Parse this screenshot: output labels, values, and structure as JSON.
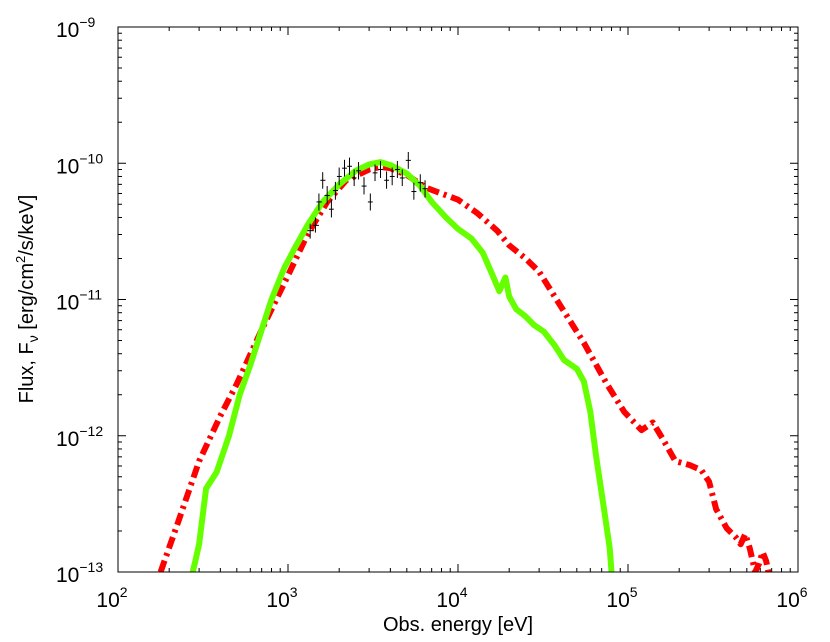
{
  "chart_data": {
    "type": "line",
    "xscale": "log",
    "yscale": "log",
    "xlabel": "Obs. energy [eV]",
    "ylabel": {
      "main": "Flux, F",
      "sub": "ν",
      "unit_a": " [erg/cm",
      "sup": "2",
      "unit_b": "/s/keV]"
    },
    "xlim": [
      100,
      1000000
    ],
    "ylim": [
      1e-13,
      1e-09
    ],
    "x_ticks": [
      {
        "value": 100,
        "base": "10",
        "exp": "2"
      },
      {
        "value": 1000,
        "base": "10",
        "exp": "3"
      },
      {
        "value": 10000,
        "base": "10",
        "exp": "4"
      },
      {
        "value": 100000,
        "base": "10",
        "exp": "5"
      },
      {
        "value": 1000000,
        "base": "10",
        "exp": "6"
      }
    ],
    "y_ticks": [
      {
        "value": 1e-13,
        "base": "10",
        "exp": "−13"
      },
      {
        "value": 1e-12,
        "base": "10",
        "exp": "−12"
      },
      {
        "value": 1e-11,
        "base": "10",
        "exp": "−11"
      },
      {
        "value": 1e-10,
        "base": "10",
        "exp": "−10"
      },
      {
        "value": 1e-09,
        "base": "10",
        "exp": "−9"
      }
    ],
    "series": [
      {
        "name": "model-red-dashdot",
        "color": "#ff0000",
        "style": "dash-dot",
        "points": [
          [
            178,
            1e-13
          ],
          [
            225,
            2.3e-13
          ],
          [
            300,
            6.5e-13
          ],
          [
            400,
            1.4e-12
          ],
          [
            500,
            2.4e-12
          ],
          [
            700,
            6e-12
          ],
          [
            1000,
            1.5e-11
          ],
          [
            1300,
            3e-11
          ],
          [
            1700,
            5.2e-11
          ],
          [
            2200,
            7.5e-11
          ],
          [
            3000,
            9e-11
          ],
          [
            3500,
            9.4e-11
          ],
          [
            4000,
            9.2e-11
          ],
          [
            5000,
            8.2e-11
          ],
          [
            6500,
            6.6e-11
          ],
          [
            8000,
            6e-11
          ],
          [
            10000,
            5.4e-11
          ],
          [
            13000,
            4.3e-11
          ],
          [
            17000,
            3.2e-11
          ],
          [
            20000,
            2.5e-11
          ],
          [
            25000,
            2e-11
          ],
          [
            30000,
            1.6e-11
          ],
          [
            40000,
            9e-12
          ],
          [
            55000,
            4.8e-12
          ],
          [
            75000,
            2.4e-12
          ],
          [
            95000,
            1.5e-12
          ],
          [
            120000,
            1.1e-12
          ],
          [
            140000,
            1.25e-12
          ],
          [
            160000,
            9.5e-13
          ],
          [
            190000,
            6.5e-13
          ],
          [
            230000,
            6.1e-13
          ],
          [
            270000,
            5.6e-13
          ],
          [
            300000,
            4.6e-13
          ],
          [
            330000,
            2.9e-13
          ],
          [
            380000,
            2.1e-13
          ],
          [
            430000,
            1.8e-13
          ],
          [
            460000,
            1.6e-13
          ],
          [
            490000,
            1.9e-13
          ],
          [
            520000,
            1.5e-13
          ],
          [
            560000,
            1e-13
          ],
          [
            590000,
            1.15e-13
          ],
          [
            620000,
            1.4e-13
          ],
          [
            650000,
            1.2e-13
          ],
          [
            670000,
            1e-13
          ]
        ]
      },
      {
        "name": "model-green-solid",
        "color": "#66ff00",
        "style": "solid",
        "points": [
          [
            275,
            1e-13
          ],
          [
            285,
            1.2e-13
          ],
          [
            300,
            1.6e-13
          ],
          [
            330,
            4.1e-13
          ],
          [
            380,
            5.4e-13
          ],
          [
            450,
            1e-12
          ],
          [
            520,
            2e-12
          ],
          [
            600,
            3.3e-12
          ],
          [
            700,
            6e-12
          ],
          [
            800,
            1e-11
          ],
          [
            950,
            1.7e-11
          ],
          [
            1100,
            2.4e-11
          ],
          [
            1300,
            3.5e-11
          ],
          [
            1600,
            5.2e-11
          ],
          [
            2000,
            7e-11
          ],
          [
            2500,
            8.8e-11
          ],
          [
            3000,
            9.8e-11
          ],
          [
            3500,
            1.02e-10
          ],
          [
            4000,
            9.7e-11
          ],
          [
            5000,
            8.4e-11
          ],
          [
            6000,
            6.8e-11
          ],
          [
            7000,
            5.2e-11
          ],
          [
            8500,
            4e-11
          ],
          [
            10000,
            3.3e-11
          ],
          [
            12000,
            2.8e-11
          ],
          [
            14000,
            2.2e-11
          ],
          [
            16000,
            1.5e-11
          ],
          [
            17500,
            1.15e-11
          ],
          [
            19000,
            1.45e-11
          ],
          [
            20000,
            1.05e-11
          ],
          [
            22000,
            8.5e-12
          ],
          [
            25000,
            7.5e-12
          ],
          [
            28000,
            6.5e-12
          ],
          [
            32000,
            5.8e-12
          ],
          [
            37000,
            4.6e-12
          ],
          [
            42000,
            3.6e-12
          ],
          [
            50000,
            3.1e-12
          ],
          [
            55000,
            2.5e-12
          ],
          [
            60000,
            1.5e-12
          ],
          [
            65000,
            7e-13
          ],
          [
            72000,
            3e-13
          ],
          [
            78000,
            1.5e-13
          ],
          [
            80000,
            1e-13
          ]
        ]
      }
    ],
    "data_points": [
      {
        "x": 1350,
        "y": 3.2e-11,
        "xlo": 1300,
        "xhi": 1420,
        "ylo": 2.8e-11,
        "yhi": 3.6e-11
      },
      {
        "x": 1450,
        "y": 3.5e-11,
        "xlo": 1400,
        "xhi": 1520,
        "ylo": 3.1e-11,
        "yhi": 4e-11
      },
      {
        "x": 1520,
        "y": 5.2e-11,
        "xlo": 1470,
        "xhi": 1580,
        "ylo": 4.5e-11,
        "yhi": 6e-11
      },
      {
        "x": 1600,
        "y": 7.5e-11,
        "xlo": 1550,
        "xhi": 1660,
        "ylo": 6.5e-11,
        "yhi": 8.6e-11
      },
      {
        "x": 1700,
        "y": 5.8e-11,
        "xlo": 1640,
        "xhi": 1760,
        "ylo": 5e-11,
        "yhi": 6.8e-11
      },
      {
        "x": 1800,
        "y": 4.6e-11,
        "xlo": 1740,
        "xhi": 1860,
        "ylo": 4e-11,
        "yhi": 5.4e-11
      },
      {
        "x": 1900,
        "y": 6.3e-11,
        "xlo": 1840,
        "xhi": 1970,
        "ylo": 5.4e-11,
        "yhi": 7.3e-11
      },
      {
        "x": 2000,
        "y": 8e-11,
        "xlo": 1940,
        "xhi": 2070,
        "ylo": 6.9e-11,
        "yhi": 9.3e-11
      },
      {
        "x": 2150,
        "y": 9.2e-11,
        "xlo": 2080,
        "xhi": 2220,
        "ylo": 8e-11,
        "yhi": 1.06e-10
      },
      {
        "x": 2300,
        "y": 9.5e-11,
        "xlo": 2230,
        "xhi": 2380,
        "ylo": 8.2e-11,
        "yhi": 1.1e-10
      },
      {
        "x": 2450,
        "y": 7.8e-11,
        "xlo": 2370,
        "xhi": 2530,
        "ylo": 6.8e-11,
        "yhi": 9e-11
      },
      {
        "x": 2600,
        "y": 8.8e-11,
        "xlo": 2520,
        "xhi": 2690,
        "ylo": 7.6e-11,
        "yhi": 1.02e-10
      },
      {
        "x": 2800,
        "y": 6.8e-11,
        "xlo": 2710,
        "xhi": 2900,
        "ylo": 5.9e-11,
        "yhi": 7.9e-11
      },
      {
        "x": 3050,
        "y": 5.2e-11,
        "xlo": 2950,
        "xhi": 3150,
        "ylo": 4.5e-11,
        "yhi": 6e-11
      },
      {
        "x": 3250,
        "y": 8.5e-11,
        "xlo": 3150,
        "xhi": 3360,
        "ylo": 7.4e-11,
        "yhi": 9.8e-11
      },
      {
        "x": 3500,
        "y": 9e-11,
        "xlo": 3390,
        "xhi": 3620,
        "ylo": 7.8e-11,
        "yhi": 1.04e-10
      },
      {
        "x": 3800,
        "y": 7.5e-11,
        "xlo": 3680,
        "xhi": 3930,
        "ylo": 6.5e-11,
        "yhi": 8.7e-11
      },
      {
        "x": 4100,
        "y": 8e-11,
        "xlo": 3970,
        "xhi": 4240,
        "ylo": 6.9e-11,
        "yhi": 9.3e-11
      },
      {
        "x": 4400,
        "y": 9e-11,
        "xlo": 4260,
        "xhi": 4550,
        "ylo": 7.8e-11,
        "yhi": 1.04e-10
      },
      {
        "x": 4700,
        "y": 7.8e-11,
        "xlo": 4550,
        "xhi": 4860,
        "ylo": 6.8e-11,
        "yhi": 9e-11
      },
      {
        "x": 5100,
        "y": 1.05e-10,
        "xlo": 4930,
        "xhi": 5280,
        "ylo": 9.1e-11,
        "yhi": 1.21e-10
      },
      {
        "x": 5500,
        "y": 6.2e-11,
        "xlo": 5320,
        "xhi": 5690,
        "ylo": 5.4e-11,
        "yhi": 7.2e-11
      },
      {
        "x": 6000,
        "y": 7.2e-11,
        "xlo": 5800,
        "xhi": 6200,
        "ylo": 6.2e-11,
        "yhi": 8.3e-11
      },
      {
        "x": 6400,
        "y": 6.5e-11,
        "xlo": 6190,
        "xhi": 6620,
        "ylo": 5.6e-11,
        "yhi": 7.5e-11
      }
    ]
  }
}
